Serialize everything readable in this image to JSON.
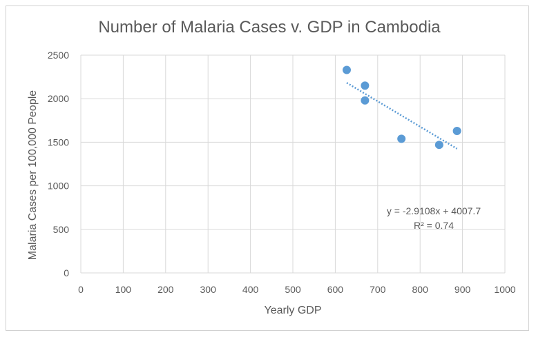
{
  "chart_data": {
    "type": "scatter",
    "title": "Number of Malaria Cases v. GDP in Cambodia",
    "xlabel": "Yearly GDP",
    "ylabel": "Malaria Cases per 100,000 People",
    "xlim": [
      0,
      1000
    ],
    "ylim": [
      0,
      2500
    ],
    "x_ticks": [
      "0",
      "100",
      "200",
      "300",
      "400",
      "500",
      "600",
      "700",
      "800",
      "900",
      "1000"
    ],
    "y_ticks": [
      "0",
      "500",
      "1000",
      "1500",
      "2000",
      "2500"
    ],
    "grid": true,
    "legend": "none",
    "colors": {
      "points": "#5b9bd5",
      "trendline": "#5b9bd5",
      "grid": "#d9d9d9",
      "text": "#595959"
    },
    "points": [
      {
        "x": 627,
        "y": 2330
      },
      {
        "x": 670,
        "y": 2150
      },
      {
        "x": 670,
        "y": 1980
      },
      {
        "x": 756,
        "y": 1540
      },
      {
        "x": 845,
        "y": 1470
      },
      {
        "x": 887,
        "y": 1630
      }
    ],
    "trendline": {
      "type": "linear",
      "slope": -2.9108,
      "intercept": 4007.7,
      "x_range": [
        627,
        887
      ],
      "equation": "y = -2.9108x + 4007.7",
      "r_squared": "R² = 0.74"
    }
  }
}
